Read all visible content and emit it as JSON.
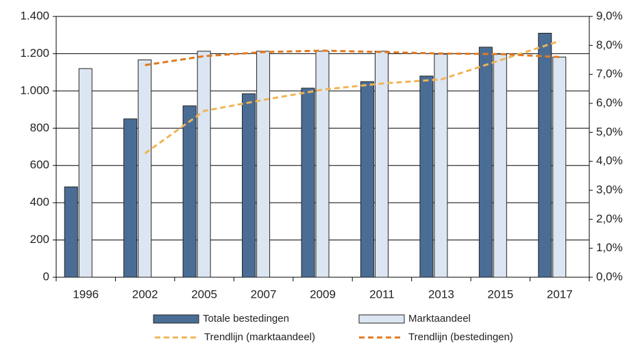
{
  "chart_data": {
    "type": "bar",
    "categories": [
      "1996",
      "2002",
      "2005",
      "2007",
      "2009",
      "2011",
      "2013",
      "2015",
      "2017"
    ],
    "series": [
      {
        "name": "Totale bestedingen",
        "type": "bar",
        "color": "#4a6d96",
        "values": [
          485,
          850,
          920,
          985,
          1015,
          1050,
          1080,
          1235,
          1310
        ]
      },
      {
        "name": "Marktaandeel",
        "type": "bar",
        "axis": "y2",
        "color": "#dce6f2",
        "values": [
          7.2,
          7.5,
          7.8,
          7.8,
          7.8,
          7.8,
          7.7,
          7.7,
          7.6
        ]
      },
      {
        "name": "Trendlijn (marktaandeel)",
        "type": "line",
        "color": "#f0b455",
        "values": [
          null,
          665,
          893,
          952,
          1007,
          1040,
          1062,
          1165,
          1268
        ]
      },
      {
        "name": "Trendlijn (bestedingen)",
        "type": "line",
        "axis": "y2",
        "color": "#e07a20",
        "values": [
          null,
          7.32,
          7.63,
          7.77,
          7.82,
          7.77,
          7.72,
          7.7,
          7.6
        ]
      }
    ],
    "ylim": [
      0,
      1400
    ],
    "yticks": [
      0,
      200,
      400,
      600,
      800,
      {
        "value": 1000,
        "label": "1.000"
      },
      {
        "value": 1200,
        "label": "1.200"
      },
      {
        "value": 1400,
        "label": "1.400"
      }
    ],
    "y2lim": [
      0,
      9
    ],
    "y2ticks": [
      {
        "value": 0,
        "label": "0,0%"
      },
      {
        "value": 1,
        "label": "1,0%"
      },
      {
        "value": 2,
        "label": "2,0%"
      },
      {
        "value": 3,
        "label": "3,0%"
      },
      {
        "value": 4,
        "label": "4,0%"
      },
      {
        "value": 5,
        "label": "5,0%"
      },
      {
        "value": 6,
        "label": "6,0%"
      },
      {
        "value": 7,
        "label": "7,0%"
      },
      {
        "value": 8,
        "label": "8,0%"
      },
      {
        "value": 9,
        "label": "9,0%"
      }
    ],
    "grid": true,
    "legend": "bottom"
  }
}
